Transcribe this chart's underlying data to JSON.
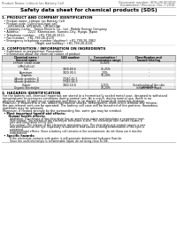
{
  "background_color": "#ffffff",
  "header_left": "Product Name: Lithium Ion Battery Cell",
  "header_right_line1": "Document number: SDS-LIB-000010",
  "header_right_line2": "Established / Revision: Dec.7,2016",
  "title": "Safety data sheet for chemical products (SDS)",
  "section1_title": "1. PRODUCT AND COMPANY IDENTIFICATION",
  "section1_lines": [
    "  • Product name: Lithium Ion Battery Cell",
    "  • Product code: Cylindrical-type cell",
    "      (UR18650A, UR18650L, UR18650A)",
    "  • Company name:   Sanyo Electric Co., Ltd., Mobile Energy Company",
    "  • Address:         2221  Kaminaizen, Sumoto-City, Hyogo, Japan",
    "  • Telephone number:   +81-799-26-4111",
    "  • Fax number:  +81-799-26-4129",
    "  • Emergency telephone number (daytime): +81-799-26-3962",
    "                                  (Night and holiday): +81-799-26-4101"
  ],
  "section2_title": "2. COMPOSITION / INFORMATION ON INGREDIENTS",
  "section2_intro": "  • Substance or preparation: Preparation",
  "section2_sub": "  • Information about the chemical nature of product:",
  "table_headers": [
    "Chemical name /\nGeneral name",
    "CAS number",
    "Concentration /\nConcentration range",
    "Classification and\nhazard labeling"
  ],
  "section3_title": "3. HAZARDS IDENTIFICATION",
  "section3_para1": "For the battery cell, chemical materials are stored in a hermetically sealed metal case, designed to withstand",
  "section3_para1b": "temperatures or pressures-conditions during normal use. As a result, during normal use, there is no",
  "section3_para1c": "physical danger of ignition or explosion and there is no danger of hazardous materials leakage.",
  "section3_para2a": "However, if exposed to a fire, added mechanical shocks, decomposed, short-circuit without any misuse,",
  "section3_para2b": "the gas release vent can be operated. The battery cell case will be breached of fire-portions, hazardous",
  "section3_para2c": "materials may be released.",
  "section3_para3": "Moreover, if heated strongly by the surrounding fire, some gas may be emitted.",
  "section3_bullet1": "  • Most important hazard and effects:",
  "section3_human": "    Human health effects:",
  "section3_inhalation": "      Inhalation: The release of the electrolyte has an anesthesia action and stimulates a respiratory tract.",
  "section3_skin1": "      Skin contact: The release of the electrolyte stimulates a skin. The electrolyte skin contact causes a",
  "section3_skin2": "      sore and stimulation on the skin.",
  "section3_eye1": "      Eye contact: The release of the electrolyte stimulates eyes. The electrolyte eye contact causes a sore",
  "section3_eye2": "      and stimulation on the eye. Especially, a substance that causes a strong inflammation of the eyes is",
  "section3_eye3": "      contained.",
  "section3_env1": "      Environmental effects: Since a battery cell remains in the environment, do not throw out it into the",
  "section3_env2": "      environment.",
  "section3_specific": "  • Specific hazards:",
  "section3_sp1": "      If the electrolyte contacts with water, it will generate detrimental hydrogen fluoride.",
  "section3_sp2": "      Since the used electrolyte is inflammable liquid, do not bring close to fire."
}
